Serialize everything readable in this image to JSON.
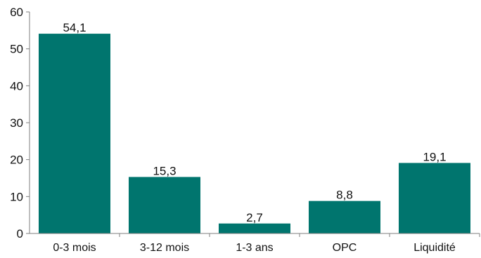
{
  "chart_data": {
    "type": "bar",
    "categories": [
      "0-3 mois",
      "3-12 mois",
      "1-3 ans",
      "OPC",
      "Liquidité"
    ],
    "values": [
      54.1,
      15.3,
      2.7,
      8.8,
      19.1
    ],
    "data_labels": [
      "54,1",
      "15,3",
      "2,7",
      "8,8",
      "19,1"
    ],
    "title": "",
    "xlabel": "",
    "ylabel": "",
    "ylim": [
      0,
      60
    ],
    "yticks": [
      0,
      10,
      20,
      30,
      40,
      50,
      60
    ],
    "grid": false,
    "legend": "none",
    "bar_color": "#00756e",
    "axis_color": "#7f7f7f"
  }
}
